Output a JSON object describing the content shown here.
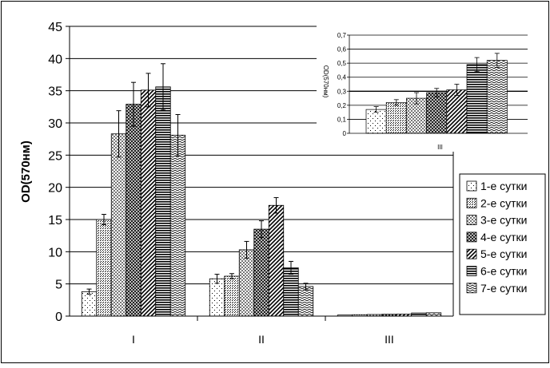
{
  "chart_data": [
    {
      "type": "bar",
      "ylabel": "OD(570нм)",
      "ylim": [
        0,
        45
      ],
      "yticks": [
        0,
        5,
        10,
        15,
        20,
        25,
        30,
        35,
        40,
        45
      ],
      "categories": [
        "I",
        "II",
        "III"
      ],
      "grid": true,
      "legend_position": "right",
      "series": [
        {
          "name": "1-е сутки",
          "pattern": "dots-sparse",
          "values": [
            3.8,
            5.8,
            0.17
          ],
          "errors": [
            0.4,
            0.7,
            0.02
          ]
        },
        {
          "name": "2-е сутки",
          "pattern": "dots-dense",
          "values": [
            15.0,
            6.2,
            0.22
          ],
          "errors": [
            0.8,
            0.4,
            0.02
          ]
        },
        {
          "name": "3-е сутки",
          "pattern": "checker",
          "values": [
            28.3,
            10.3,
            0.25
          ],
          "errors": [
            3.6,
            1.3,
            0.04
          ]
        },
        {
          "name": "4-е сутки",
          "pattern": "checker-dark",
          "values": [
            32.9,
            13.5,
            0.29
          ],
          "errors": [
            3.4,
            1.3,
            0.03
          ]
        },
        {
          "name": "5-е сутки",
          "pattern": "diagonal",
          "values": [
            35.1,
            17.2,
            0.31
          ],
          "errors": [
            2.6,
            1.2,
            0.04
          ]
        },
        {
          "name": "6-е сутки",
          "pattern": "horizontal",
          "values": [
            35.6,
            7.5,
            0.49
          ],
          "errors": [
            3.6,
            1.0,
            0.05
          ]
        },
        {
          "name": "7-е сутки",
          "pattern": "zigzag",
          "values": [
            28.1,
            4.6,
            0.52
          ],
          "errors": [
            3.2,
            0.5,
            0.05
          ]
        }
      ]
    },
    {
      "type": "bar",
      "ylabel": "OD(570нм)",
      "ylim": [
        0,
        0.7
      ],
      "yticks": [
        "0",
        "0,1",
        "0,2",
        "0,3",
        "0,4",
        "0,5",
        "0,6",
        "0,7"
      ],
      "categories": [
        "III"
      ],
      "grid": true,
      "series_values": [
        0.17,
        0.22,
        0.25,
        0.29,
        0.31,
        0.49,
        0.52
      ],
      "series_errors": [
        0.02,
        0.02,
        0.04,
        0.03,
        0.04,
        0.05,
        0.05
      ]
    }
  ]
}
